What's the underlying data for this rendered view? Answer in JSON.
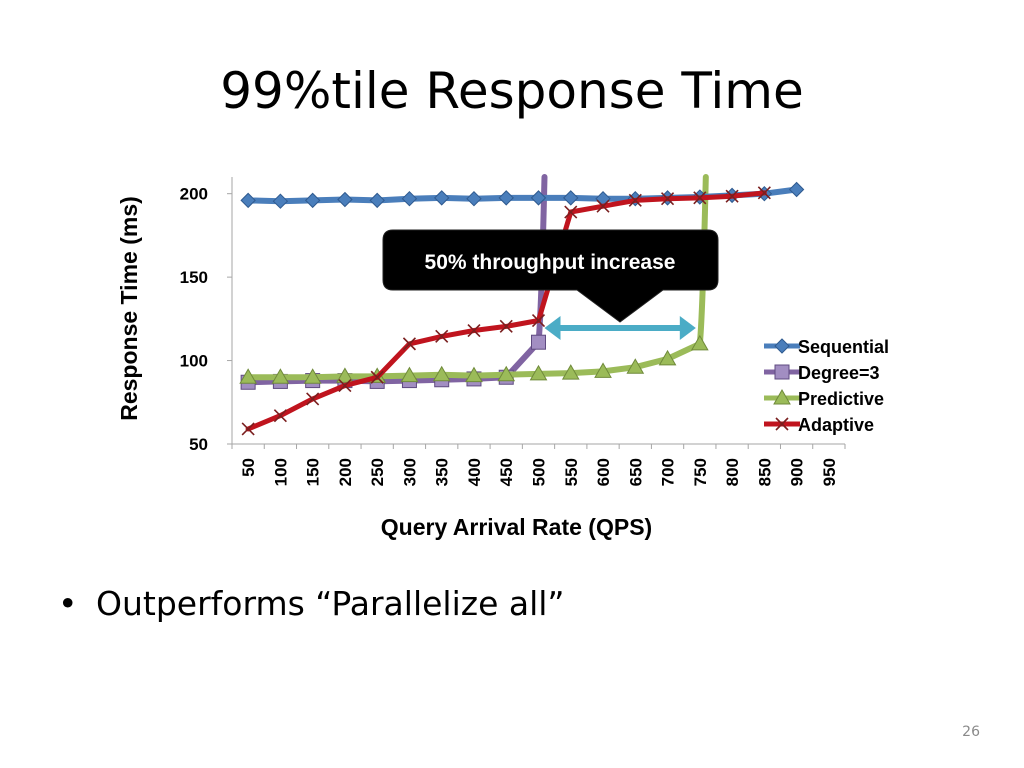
{
  "slide": {
    "title": "99%tile Response Time",
    "bullet_marker": "•",
    "bullet_text": "Outperforms “Parallelize all”",
    "page_number": "26"
  },
  "chart_data": {
    "type": "line",
    "xlabel": "Query Arrival Rate (QPS)",
    "ylabel": "Response Time (ms)",
    "categories": [
      "50",
      "100",
      "150",
      "200",
      "250",
      "300",
      "350",
      "400",
      "450",
      "500",
      "550",
      "600",
      "650",
      "700",
      "750",
      "800",
      "850",
      "900",
      "950"
    ],
    "ylim": [
      50,
      210
    ],
    "yticks": [
      50,
      100,
      150,
      200
    ],
    "grid": false,
    "legend_position": "right",
    "annotation": {
      "text": "50% throughput increase",
      "arrow_from": "500",
      "arrow_to": "750"
    },
    "series": [
      {
        "name": "Sequential",
        "color": "#4a7ebb",
        "marker": "diamond",
        "x": [
          "50",
          "100",
          "150",
          "200",
          "250",
          "300",
          "350",
          "400",
          "450",
          "500",
          "550",
          "600",
          "650",
          "700",
          "750",
          "800",
          "850",
          "900"
        ],
        "values": [
          196,
          195.5,
          196,
          196.5,
          196,
          197,
          197.5,
          197,
          197.5,
          197.5,
          197.5,
          197,
          197,
          197.5,
          198,
          199,
          200,
          202.5
        ],
        "exit_top": false
      },
      {
        "name": "Degree=3",
        "color": "#8064a2",
        "marker": "square",
        "x": [
          "50",
          "100",
          "150",
          "200",
          "250",
          "300",
          "350",
          "400",
          "450",
          "500"
        ],
        "values": [
          87,
          87.5,
          88,
          88,
          87.5,
          88,
          88.5,
          89,
          90,
          111
        ],
        "exit_top": true
      },
      {
        "name": "Predictive",
        "color": "#9bbb59",
        "marker": "triangle",
        "x": [
          "50",
          "100",
          "150",
          "200",
          "250",
          "300",
          "350",
          "400",
          "450",
          "500",
          "550",
          "600",
          "650",
          "700",
          "750"
        ],
        "values": [
          90,
          90,
          90,
          90.5,
          90.5,
          91,
          91.5,
          91,
          91.5,
          92,
          92.5,
          93.5,
          96,
          101,
          110
        ],
        "exit_top": true
      },
      {
        "name": "Adaptive",
        "color": "#c0141e",
        "marker": "x",
        "x": [
          "50",
          "100",
          "150",
          "200",
          "250",
          "300",
          "350",
          "400",
          "450",
          "500",
          "550",
          "600",
          "650",
          "700",
          "750",
          "800",
          "850"
        ],
        "values": [
          59,
          67,
          77,
          85,
          90,
          110,
          114.5,
          118,
          120.5,
          124,
          189,
          192.5,
          196,
          197,
          197.5,
          198.5,
          200.5
        ],
        "exit_top": false
      }
    ]
  }
}
